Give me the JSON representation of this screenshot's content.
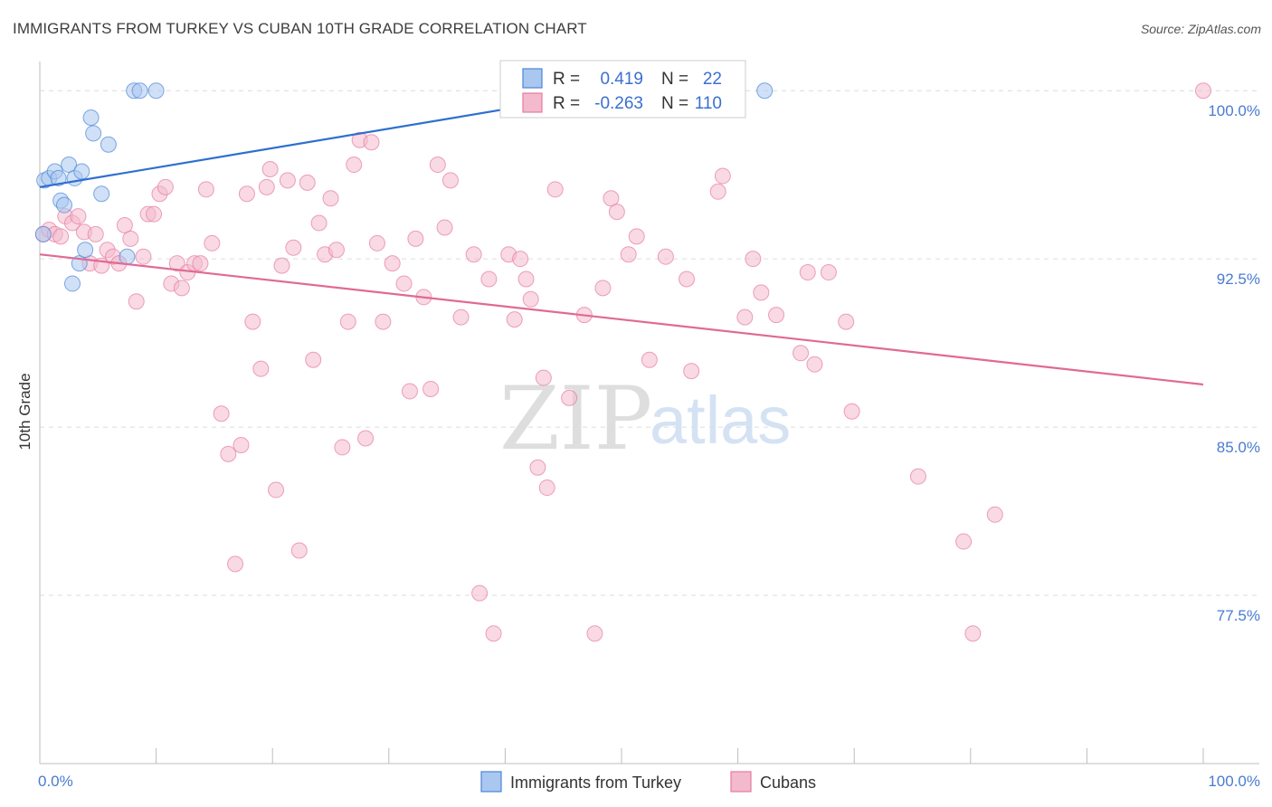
{
  "title": "IMMIGRANTS FROM TURKEY VS CUBAN 10TH GRADE CORRELATION CHART",
  "source": "Source: ZipAtlas.com",
  "watermark": {
    "zip": "ZIP",
    "atlas": "atlas"
  },
  "colors": {
    "blue": "#4a86d8",
    "blue_line": "#2f6fcf",
    "blue_fill": "#a9c7ef",
    "pink": "#e77aa0",
    "pink_line": "#e06a95",
    "pink_fill": "#f3b9cd",
    "tick_text": "#4a7bd0",
    "grid": "#dcdcdc"
  },
  "stats": [
    {
      "series": "Immigrants from Turkey",
      "r_label": "R =",
      "r": "0.419",
      "n_label": "N =",
      "n": "22"
    },
    {
      "series": "Cubans",
      "r_label": "R =",
      "r": "-0.263",
      "n_label": "N =",
      "n": "110"
    }
  ],
  "chart_data": {
    "type": "scatter",
    "title": "IMMIGRANTS FROM TURKEY VS CUBAN 10TH GRADE CORRELATION CHART",
    "xlabel": "",
    "ylabel": "10th Grade",
    "xlim": [
      0,
      100
    ],
    "ylim": [
      70.0,
      101.3
    ],
    "x_tick_labels": [
      "0.0%",
      "100.0%"
    ],
    "y_ticks": [
      77.5,
      85.0,
      92.5,
      100.0
    ],
    "y_tick_labels": [
      "77.5%",
      "85.0%",
      "92.5%",
      "100.0%"
    ],
    "legend": [
      "Immigrants from Turkey",
      "Cubans"
    ],
    "legend_position": "bottom-center",
    "series": [
      {
        "name": "Immigrants from Turkey",
        "trend": {
          "x0": 0,
          "y0": 95.7,
          "x1": 49.5,
          "y1": 100.0
        },
        "points": [
          [
            0.3,
            93.6
          ],
          [
            0.4,
            96.0
          ],
          [
            0.8,
            96.1
          ],
          [
            1.3,
            96.4
          ],
          [
            1.6,
            96.1
          ],
          [
            1.8,
            95.1
          ],
          [
            2.1,
            94.9
          ],
          [
            2.5,
            96.7
          ],
          [
            2.8,
            91.4
          ],
          [
            3.0,
            96.1
          ],
          [
            3.4,
            92.3
          ],
          [
            3.6,
            96.4
          ],
          [
            3.9,
            92.9
          ],
          [
            4.4,
            98.8
          ],
          [
            4.6,
            98.1
          ],
          [
            5.3,
            95.4
          ],
          [
            5.9,
            97.6
          ],
          [
            7.5,
            92.6
          ],
          [
            8.1,
            100.0
          ],
          [
            8.6,
            100.0
          ],
          [
            10.0,
            100.0
          ],
          [
            62.3,
            100.0
          ]
        ]
      },
      {
        "name": "Cubans",
        "trend": {
          "x0": 0,
          "y0": 92.7,
          "x1": 100,
          "y1": 86.9
        },
        "points": [
          [
            0.3,
            93.6
          ],
          [
            0.8,
            93.8
          ],
          [
            1.3,
            93.6
          ],
          [
            1.8,
            93.5
          ],
          [
            2.2,
            94.4
          ],
          [
            2.8,
            94.1
          ],
          [
            3.3,
            94.4
          ],
          [
            3.8,
            93.7
          ],
          [
            4.3,
            92.3
          ],
          [
            4.8,
            93.6
          ],
          [
            5.3,
            92.2
          ],
          [
            5.8,
            92.9
          ],
          [
            6.3,
            92.6
          ],
          [
            6.8,
            92.3
          ],
          [
            7.3,
            94.0
          ],
          [
            7.8,
            93.4
          ],
          [
            8.3,
            90.6
          ],
          [
            8.9,
            92.6
          ],
          [
            9.3,
            94.5
          ],
          [
            9.8,
            94.5
          ],
          [
            10.3,
            95.4
          ],
          [
            10.8,
            95.7
          ],
          [
            11.3,
            91.4
          ],
          [
            11.8,
            92.3
          ],
          [
            12.2,
            91.2
          ],
          [
            12.7,
            91.9
          ],
          [
            13.3,
            92.3
          ],
          [
            13.8,
            92.3
          ],
          [
            14.3,
            95.6
          ],
          [
            14.8,
            93.2
          ],
          [
            15.6,
            85.6
          ],
          [
            16.2,
            83.8
          ],
          [
            16.8,
            78.9
          ],
          [
            17.3,
            84.2
          ],
          [
            17.8,
            95.4
          ],
          [
            18.3,
            89.7
          ],
          [
            19.0,
            87.6
          ],
          [
            19.5,
            95.7
          ],
          [
            19.8,
            96.5
          ],
          [
            20.3,
            82.2
          ],
          [
            20.8,
            92.2
          ],
          [
            21.3,
            96.0
          ],
          [
            21.8,
            93.0
          ],
          [
            22.3,
            79.5
          ],
          [
            23.0,
            95.9
          ],
          [
            23.5,
            88.0
          ],
          [
            24.0,
            94.1
          ],
          [
            24.5,
            92.7
          ],
          [
            25.0,
            95.2
          ],
          [
            25.5,
            92.9
          ],
          [
            26.0,
            84.1
          ],
          [
            26.5,
            89.7
          ],
          [
            27.0,
            96.7
          ],
          [
            27.5,
            97.8
          ],
          [
            28.0,
            84.5
          ],
          [
            28.5,
            97.7
          ],
          [
            29.0,
            93.2
          ],
          [
            29.5,
            89.7
          ],
          [
            30.3,
            92.3
          ],
          [
            31.3,
            91.4
          ],
          [
            31.8,
            86.6
          ],
          [
            32.3,
            93.4
          ],
          [
            33.0,
            90.8
          ],
          [
            33.6,
            86.7
          ],
          [
            34.2,
            96.7
          ],
          [
            34.8,
            93.9
          ],
          [
            35.3,
            96.0
          ],
          [
            36.2,
            89.9
          ],
          [
            37.3,
            92.7
          ],
          [
            37.8,
            77.6
          ],
          [
            38.6,
            91.6
          ],
          [
            39.0,
            75.8
          ],
          [
            40.3,
            92.7
          ],
          [
            40.8,
            89.8
          ],
          [
            41.3,
            92.5
          ],
          [
            41.8,
            91.6
          ],
          [
            42.2,
            90.7
          ],
          [
            42.8,
            83.2
          ],
          [
            43.3,
            87.2
          ],
          [
            43.6,
            82.3
          ],
          [
            44.3,
            95.6
          ],
          [
            45.5,
            86.3
          ],
          [
            46.8,
            90.0
          ],
          [
            47.7,
            75.8
          ],
          [
            48.4,
            91.2
          ],
          [
            49.1,
            95.2
          ],
          [
            49.6,
            94.6
          ],
          [
            50.6,
            92.7
          ],
          [
            51.3,
            93.5
          ],
          [
            52.4,
            88.0
          ],
          [
            53.8,
            92.6
          ],
          [
            55.6,
            91.6
          ],
          [
            56.0,
            87.5
          ],
          [
            58.3,
            95.5
          ],
          [
            58.7,
            96.2
          ],
          [
            60.6,
            89.9
          ],
          [
            61.3,
            92.5
          ],
          [
            62.0,
            91.0
          ],
          [
            63.3,
            90.0
          ],
          [
            65.4,
            88.3
          ],
          [
            66.0,
            91.9
          ],
          [
            66.6,
            87.8
          ],
          [
            67.8,
            91.9
          ],
          [
            69.3,
            89.7
          ],
          [
            69.8,
            85.7
          ],
          [
            75.5,
            82.8
          ],
          [
            79.4,
            79.9
          ],
          [
            80.2,
            75.8
          ],
          [
            82.1,
            81.1
          ],
          [
            100.0,
            100.0
          ]
        ]
      }
    ]
  },
  "legend": {
    "items": [
      {
        "label": "Immigrants from Turkey",
        "color_key": "blue"
      },
      {
        "label": "Cubans",
        "color_key": "pink"
      }
    ]
  }
}
